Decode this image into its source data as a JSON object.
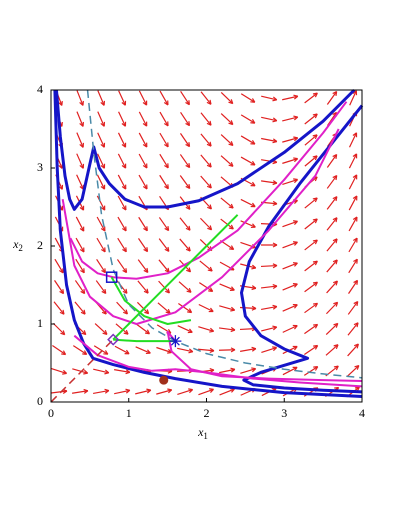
{
  "chart_data": {
    "type": "line",
    "xlabel": {
      "base": "x",
      "sub": "1"
    },
    "ylabel": {
      "base": "x",
      "sub": "2"
    },
    "xlim": [
      0,
      4
    ],
    "ylim": [
      0,
      4
    ],
    "xticks": [
      0,
      1,
      2,
      3,
      4
    ],
    "yticks": [
      0,
      1,
      2,
      3,
      4
    ],
    "series": [
      {
        "color": "#1515c8",
        "width": 3,
        "x": [
          0.07,
          0.12,
          0.18,
          0.24,
          0.3,
          0.4,
          0.5,
          0.55,
          0.62,
          0.75,
          0.95,
          1.2,
          1.5,
          1.9,
          2.4,
          3.0,
          3.5,
          3.9
        ],
        "y": [
          4,
          3.4,
          2.9,
          2.6,
          2.47,
          2.6,
          3.05,
          3.27,
          3.0,
          2.8,
          2.6,
          2.5,
          2.5,
          2.58,
          2.8,
          3.2,
          3.6,
          4.0
        ]
      },
      {
        "color": "#1515c8",
        "width": 3,
        "x": [
          0.05,
          0.08,
          0.12,
          0.2,
          0.3,
          0.42,
          0.54,
          0.8,
          1.2,
          1.6,
          2.2,
          3,
          4
        ],
        "y": [
          4,
          3,
          2.2,
          1.5,
          1.05,
          0.75,
          0.56,
          0.48,
          0.38,
          0.3,
          0.2,
          0.12,
          0.07
        ]
      },
      {
        "color": "#1515c8",
        "width": 3,
        "x": [
          4,
          3.6,
          3.2,
          2.8,
          2.55,
          2.45,
          2.5,
          2.7,
          3.0,
          3.3,
          3.0,
          2.7,
          2.48,
          2.6,
          3.0,
          3.5,
          4
        ],
        "y": [
          3.8,
          3.3,
          2.8,
          2.25,
          1.8,
          1.4,
          1.1,
          0.85,
          0.68,
          0.56,
          0.47,
          0.38,
          0.28,
          0.22,
          0.18,
          0.15,
          0.13
        ]
      },
      {
        "color": "#e020c8",
        "width": 2,
        "x": [
          0.25,
          0.4,
          0.6,
          0.8,
          1.1,
          1.5,
          1.9,
          2.4,
          3.0,
          3.5,
          3.8
        ],
        "y": [
          2.1,
          1.8,
          1.65,
          1.6,
          1.58,
          1.65,
          1.85,
          2.2,
          2.85,
          3.45,
          3.85
        ]
      },
      {
        "color": "#e020c8",
        "width": 2,
        "x": [
          0.15,
          0.3,
          0.5,
          0.8,
          1.1,
          1.6,
          2.2,
          2.8,
          3.4,
          3.7
        ],
        "y": [
          2.6,
          1.75,
          1.35,
          1.1,
          1.0,
          1.15,
          1.6,
          2.2,
          2.9,
          3.5
        ]
      },
      {
        "color": "#e020c8",
        "width": 2,
        "x": [
          0.3,
          0.6,
          1.0,
          1.3,
          1.6,
          2.0,
          2.6,
          3.2,
          4
        ],
        "y": [
          0.85,
          0.6,
          0.45,
          0.4,
          0.42,
          0.38,
          0.3,
          0.25,
          0.2
        ]
      },
      {
        "color": "#e020c8",
        "width": 2,
        "x": [
          1.6,
          1.5,
          1.55,
          1.8,
          2.2,
          2.8,
          3.5,
          4
        ],
        "y": [
          0.78,
          0.9,
          0.65,
          0.42,
          0.33,
          0.3,
          0.28,
          0.27
        ]
      },
      {
        "color": "#22dd22",
        "width": 2,
        "x": [
          0.8,
          1.0,
          1.3,
          1.6,
          2.0,
          2.4
        ],
        "y": [
          0.8,
          1.0,
          1.3,
          1.6,
          2.0,
          2.4
        ]
      },
      {
        "color": "#22dd22",
        "width": 2,
        "x": [
          0.78,
          0.95,
          1.2,
          1.5,
          1.8
        ],
        "y": [
          1.6,
          1.3,
          1.1,
          1.0,
          1.05
        ]
      },
      {
        "color": "#22dd22",
        "width": 2,
        "x": [
          0.8,
          1.1,
          1.4,
          1.6
        ],
        "y": [
          0.8,
          0.78,
          0.78,
          0.78
        ]
      },
      {
        "color": "#4a8aa8",
        "width": 1.5,
        "dash": true,
        "x": [
          0.47,
          0.55,
          0.65,
          0.8,
          1.0,
          1.3,
          1.6,
          2.0,
          2.5,
          3.0,
          3.5,
          4.0
        ],
        "y": [
          4,
          3.2,
          2.4,
          1.7,
          1.25,
          0.95,
          0.78,
          0.62,
          0.5,
          0.42,
          0.36,
          0.31
        ]
      },
      {
        "color": "#c83030",
        "width": 1.5,
        "dash": true,
        "x": [
          0,
          0.8
        ],
        "y": [
          0,
          0.8
        ]
      }
    ],
    "points": [
      {
        "shape": "square",
        "color": "#1515c8",
        "x": 0.78,
        "y": 1.6
      },
      {
        "shape": "diamond",
        "color": "#7b2fbe",
        "x": 0.8,
        "y": 0.8
      },
      {
        "shape": "star",
        "color": "#1515c8",
        "x": 1.6,
        "y": 0.78
      },
      {
        "shape": "circle",
        "color": "#a0301c",
        "x": 1.45,
        "y": 0.28
      }
    ]
  }
}
